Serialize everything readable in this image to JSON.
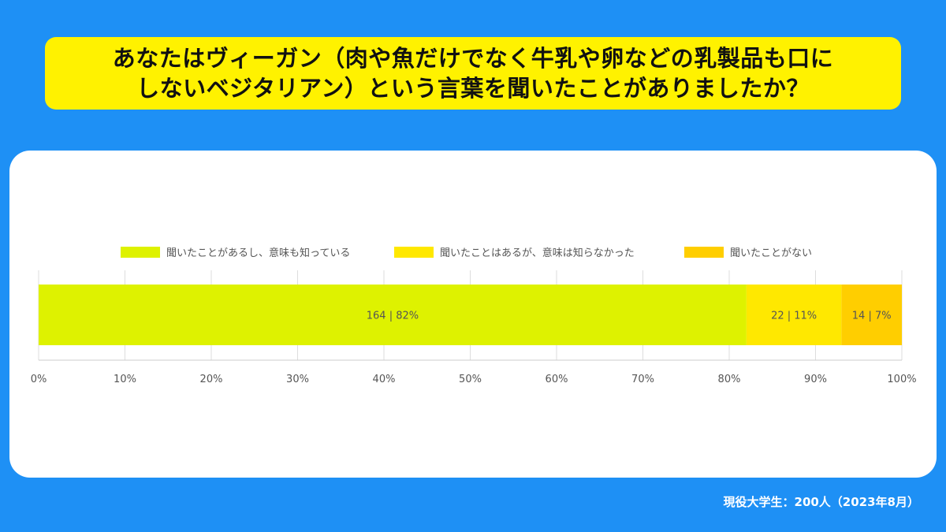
{
  "title": {
    "line1": "あなたはヴィーガン（肉や魚だけでなく牛乳や卵などの乳製品も口に",
    "line2": "しないベジタリアン）という言葉を聞いたことがありましたか？"
  },
  "footer": "現役大学生：200人（2023年8月）",
  "chart_data": {
    "type": "bar",
    "orientation": "horizontal-stacked-100",
    "categories": [
      ""
    ],
    "series": [
      {
        "name": "聞いたことがあるし、意味も知っている",
        "count": 164,
        "percent": 82,
        "label": "164 | 82%",
        "color": "#def200"
      },
      {
        "name": "聞いたことはあるが、意味は知らなかった",
        "count": 22,
        "percent": 11,
        "label": "22 | 11%",
        "color": "#ffe800"
      },
      {
        "name": "聞いたことがない",
        "count": 14,
        "percent": 7,
        "label": "14 | 7%",
        "color": "#ffce00"
      }
    ],
    "xlim": [
      0,
      100
    ],
    "xticks": [
      "0%",
      "10%",
      "20%",
      "30%",
      "40%",
      "50%",
      "60%",
      "70%",
      "80%",
      "90%",
      "100%"
    ],
    "grid": true,
    "legend": "top"
  }
}
